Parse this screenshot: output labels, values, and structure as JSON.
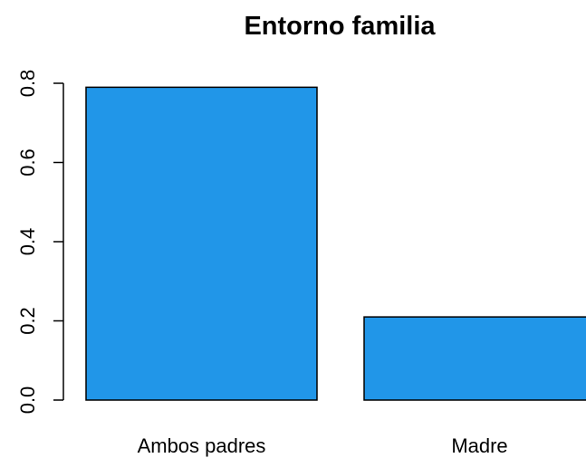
{
  "chart_data": {
    "type": "bar",
    "title": "Entorno familia",
    "categories": [
      "Ambos padres",
      "Madre"
    ],
    "values": [
      0.79,
      0.21
    ],
    "ylim": [
      0,
      0.8
    ],
    "yticks": [
      0.0,
      0.2,
      0.4,
      0.6,
      0.8
    ],
    "ytick_labels": [
      "0.0",
      "0.2",
      "0.4",
      "0.6",
      "0.8"
    ],
    "xlabel": "",
    "ylabel": "",
    "bar_color": "#2196e8",
    "grid": false,
    "legend": "none"
  }
}
